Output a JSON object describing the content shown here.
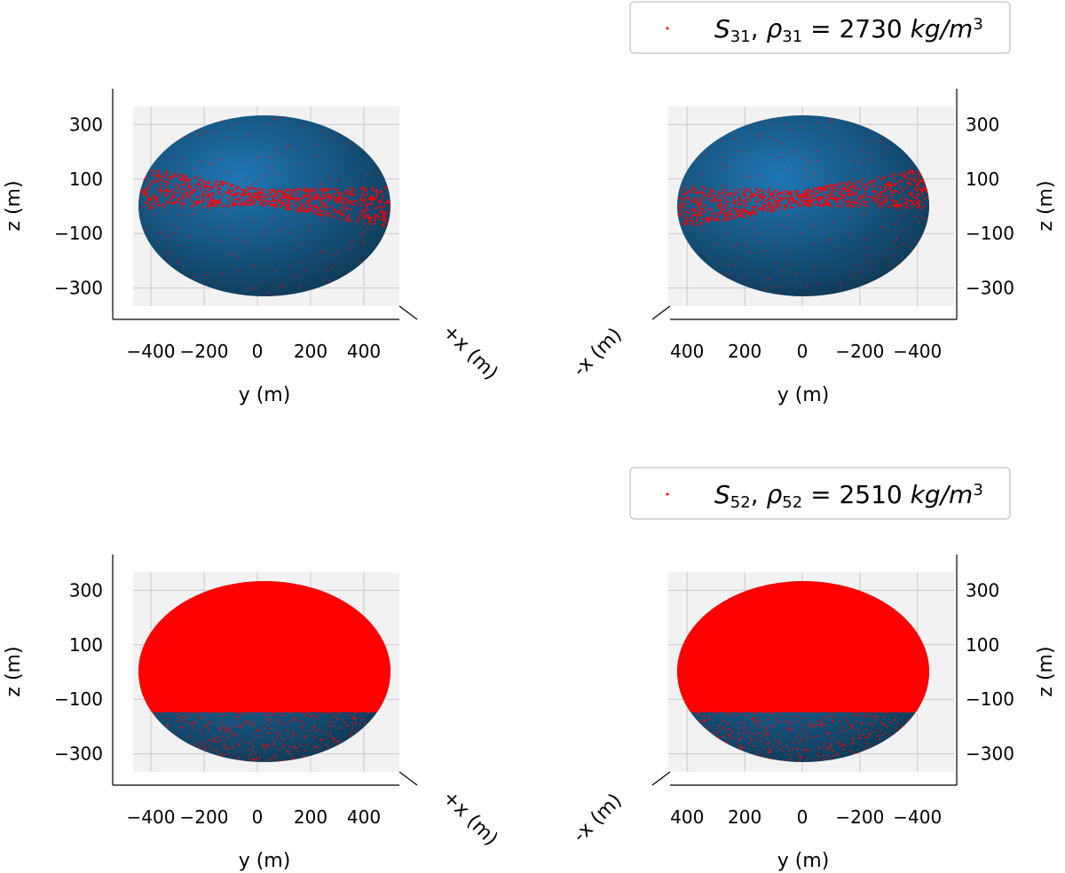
{
  "colors": {
    "body": "#1f77b4",
    "body_shade": "#0f3a57",
    "particles": "#ff0000",
    "pane": "#f2f2f2",
    "grid": "#c8c8c8",
    "axis": "#000000",
    "legend_border": "#cccccc"
  },
  "legends": [
    {
      "symbol": "S",
      "sub": "31",
      "rho": "ρ",
      "rho_sub": "31",
      "equals": " = ",
      "value": "2730",
      "unit": "kg/m",
      "exp": "3"
    },
    {
      "symbol": "S",
      "sub": "52",
      "rho": "ρ",
      "rho_sub": "52",
      "equals": " = ",
      "value": "2510",
      "unit": "kg/m",
      "exp": "3"
    }
  ],
  "chart_data": [
    {
      "type": "scatter",
      "projection": "3d",
      "view": "+x",
      "legend": 0,
      "coverage": "equatorial-band",
      "xlabel": "y (m)",
      "ylabel": "z (m)",
      "depth_label": "+x (m)",
      "xlim": [
        -450,
        450
      ],
      "ylim": [
        -350,
        350
      ],
      "x_reversed": false,
      "xticks": [
        -400,
        -200,
        0,
        200,
        400
      ],
      "xtick_labels": [
        "−400",
        "−200",
        "0",
        "200",
        "400"
      ],
      "yticks": [
        300,
        100,
        -100,
        -300
      ],
      "ytick_labels": [
        "300",
        "100",
        "−100",
        "−300"
      ],
      "ylabel_side": "left",
      "series": [
        {
          "name": "asteroid surface"
        },
        {
          "name": "S31 particles"
        }
      ]
    },
    {
      "type": "scatter",
      "projection": "3d",
      "view": "-x",
      "legend": 0,
      "coverage": "equatorial-band",
      "xlabel": "y (m)",
      "ylabel": "z (m)",
      "depth_label": "-x (m)",
      "xlim": [
        -450,
        450
      ],
      "ylim": [
        -350,
        350
      ],
      "x_reversed": true,
      "xticks": [
        400,
        200,
        0,
        -200,
        -400
      ],
      "xtick_labels": [
        "400",
        "200",
        "0",
        "−200",
        "−400"
      ],
      "yticks": [
        300,
        100,
        -100,
        -300
      ],
      "ytick_labels": [
        "300",
        "100",
        "−100",
        "−300"
      ],
      "ylabel_side": "right",
      "series": [
        {
          "name": "asteroid surface"
        },
        {
          "name": "S31 particles"
        }
      ]
    },
    {
      "type": "scatter",
      "projection": "3d",
      "view": "+x",
      "legend": 1,
      "coverage": "mostly-covered",
      "xlabel": "y (m)",
      "ylabel": "z (m)",
      "depth_label": "+x (m)",
      "xlim": [
        -450,
        450
      ],
      "ylim": [
        -350,
        350
      ],
      "x_reversed": false,
      "xticks": [
        -400,
        -200,
        0,
        200,
        400
      ],
      "xtick_labels": [
        "−400",
        "−200",
        "0",
        "200",
        "400"
      ],
      "yticks": [
        300,
        100,
        -100,
        -300
      ],
      "ytick_labels": [
        "300",
        "100",
        "−100",
        "−300"
      ],
      "ylabel_side": "left",
      "series": [
        {
          "name": "asteroid surface"
        },
        {
          "name": "S52 particles"
        }
      ]
    },
    {
      "type": "scatter",
      "projection": "3d",
      "view": "-x",
      "legend": 1,
      "coverage": "mostly-covered",
      "xlabel": "y (m)",
      "ylabel": "z (m)",
      "depth_label": "-x (m)",
      "xlim": [
        -450,
        450
      ],
      "ylim": [
        -350,
        350
      ],
      "x_reversed": true,
      "xticks": [
        400,
        200,
        0,
        -200,
        -400
      ],
      "xtick_labels": [
        "400",
        "200",
        "0",
        "−200",
        "−400"
      ],
      "yticks": [
        300,
        100,
        -100,
        -300
      ],
      "ytick_labels": [
        "300",
        "100",
        "−100",
        "−300"
      ],
      "ylabel_side": "right",
      "series": [
        {
          "name": "asteroid surface"
        },
        {
          "name": "S52 particles"
        }
      ]
    }
  ]
}
